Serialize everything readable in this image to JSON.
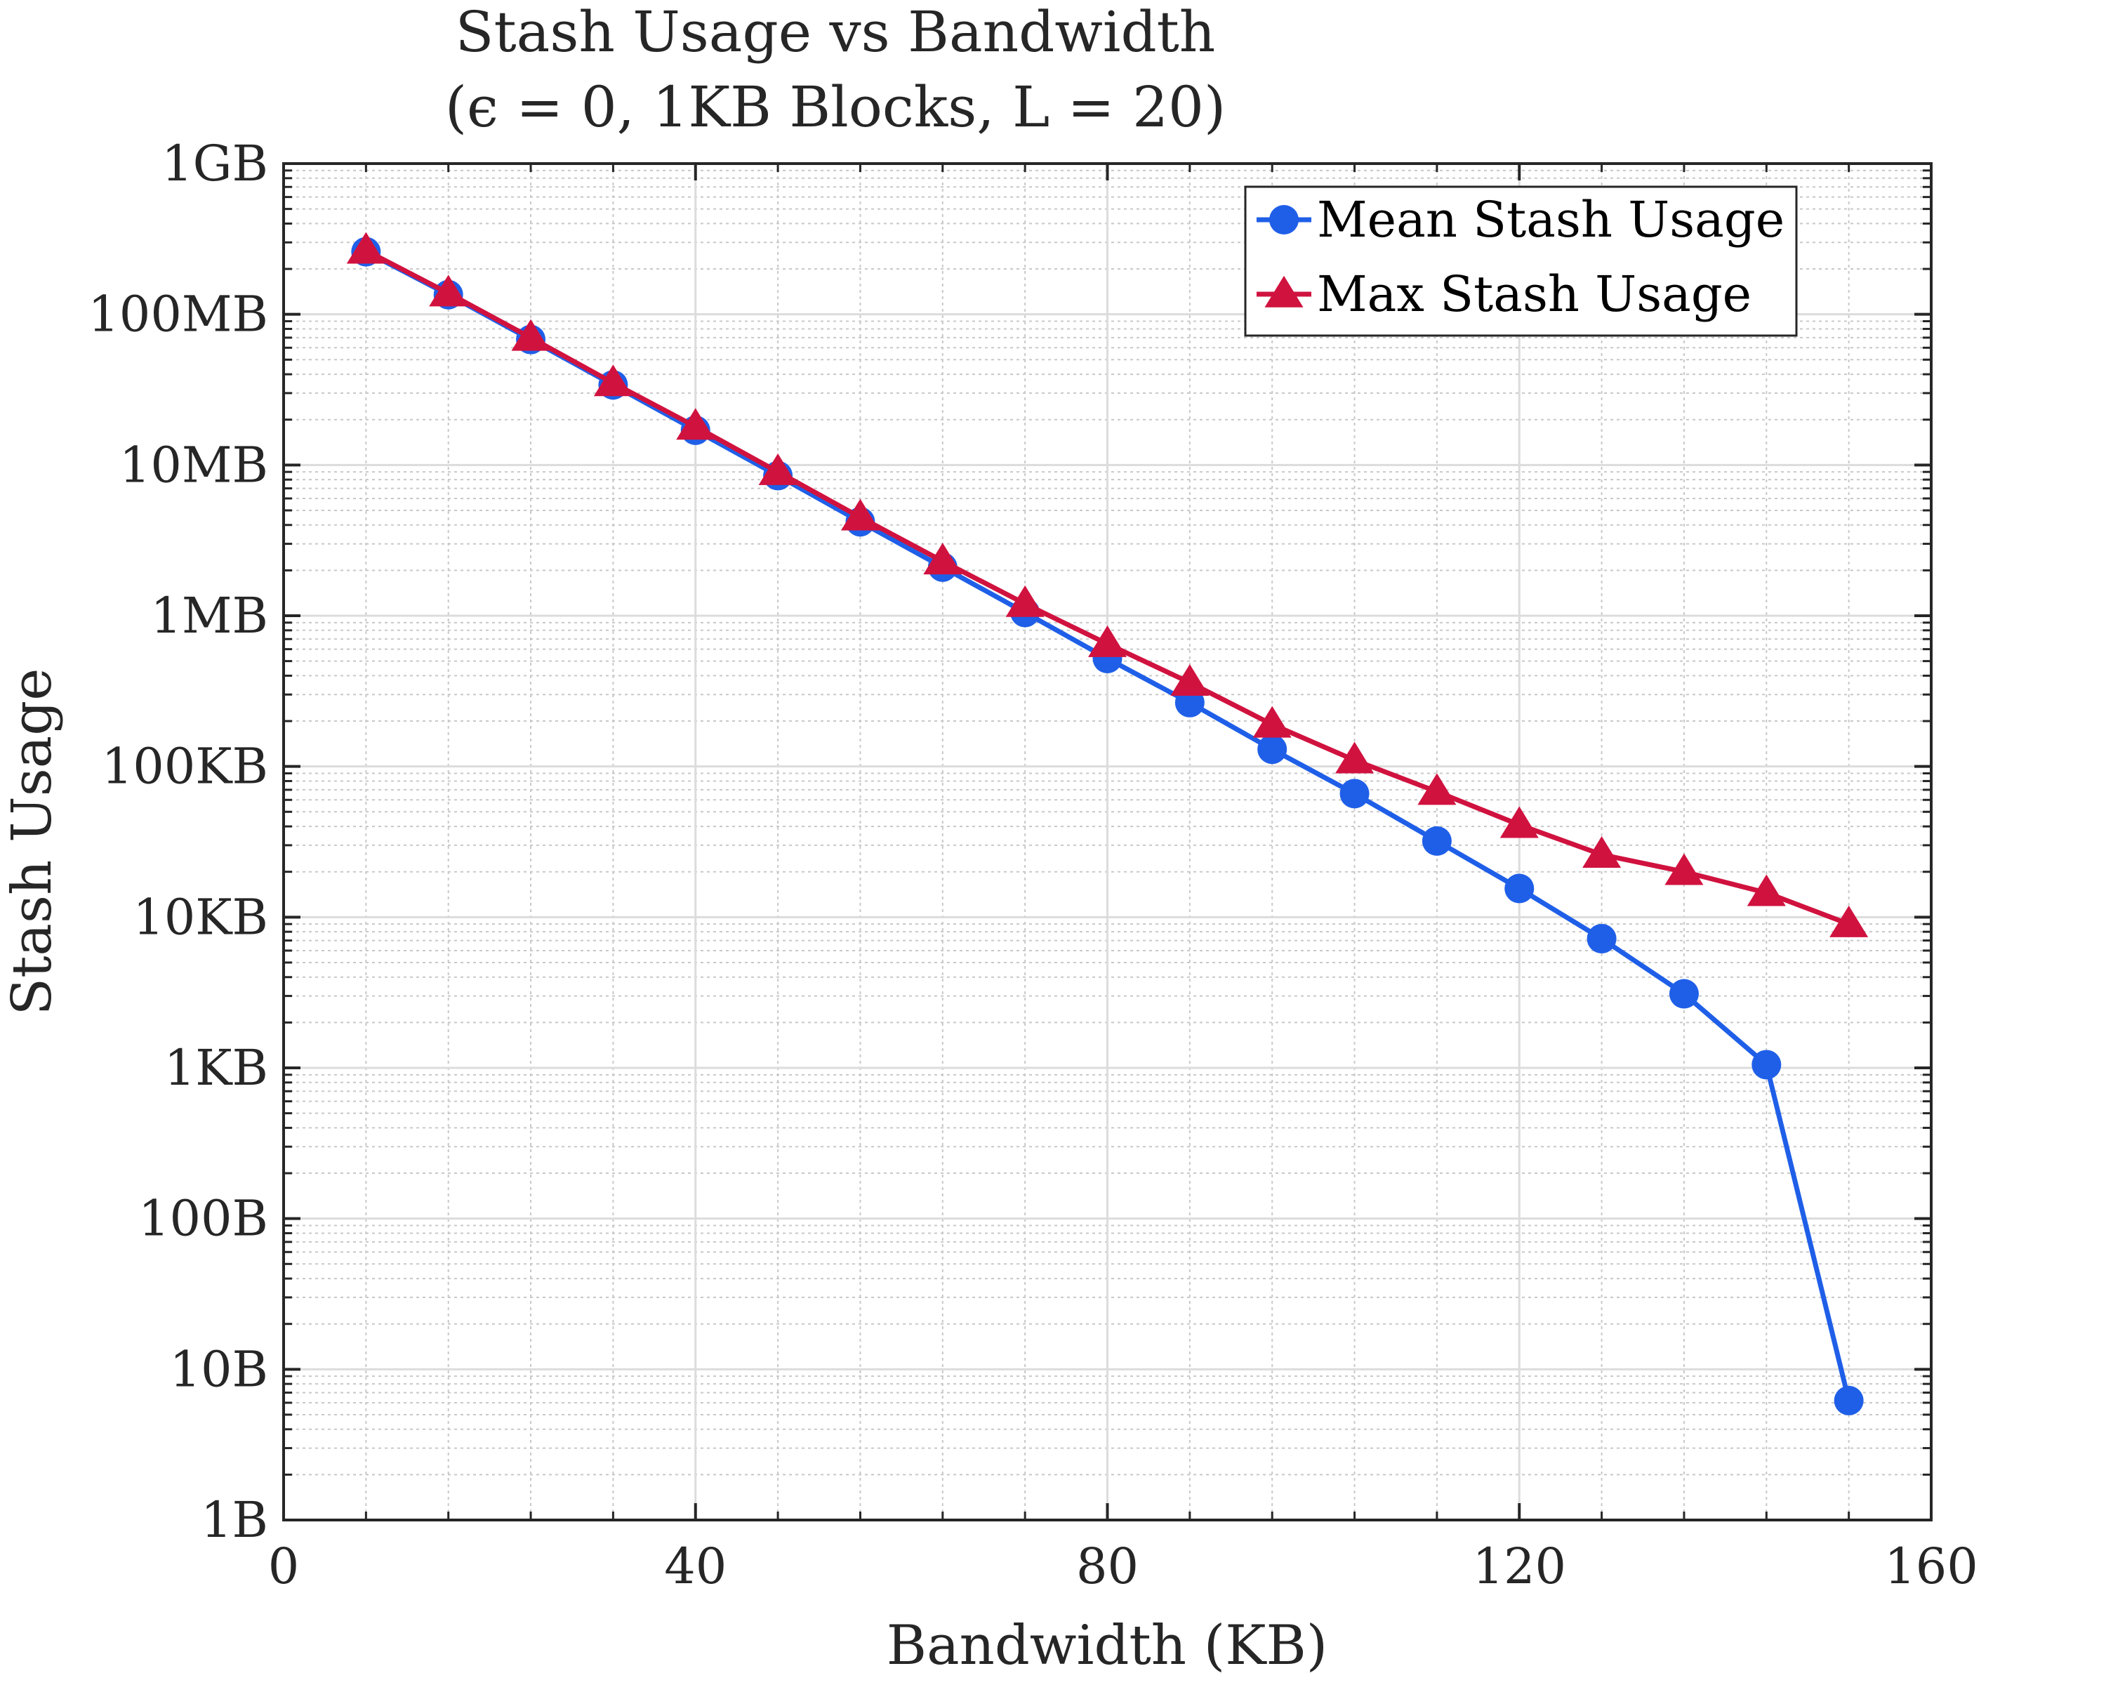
{
  "chart_data": {
    "type": "line",
    "title": "Stash Usage vs Bandwidth",
    "subtitle": "(ϵ = 0, 1KB Blocks, L = 20)",
    "xlabel": "Bandwidth (KB)",
    "ylabel": "Stash Usage",
    "xlim": [
      0,
      160
    ],
    "ylim": [
      1,
      1000000000
    ],
    "yscale": "log",
    "grid": true,
    "legend_position": "top-right",
    "x_ticks": [
      {
        "value": 0,
        "label": "0"
      },
      {
        "value": 40,
        "label": "40"
      },
      {
        "value": 80,
        "label": "80"
      },
      {
        "value": 120,
        "label": "120"
      },
      {
        "value": 160,
        "label": "160"
      }
    ],
    "y_ticks": [
      {
        "value": 1,
        "label": "1B"
      },
      {
        "value": 10,
        "label": "10B"
      },
      {
        "value": 100,
        "label": "100B"
      },
      {
        "value": 1000,
        "label": "1KB"
      },
      {
        "value": 10000,
        "label": "10KB"
      },
      {
        "value": 100000,
        "label": "100KB"
      },
      {
        "value": 1000000,
        "label": "1MB"
      },
      {
        "value": 10000000,
        "label": "10MB"
      },
      {
        "value": 100000000,
        "label": "100MB"
      },
      {
        "value": 1000000000,
        "label": "1GB"
      }
    ],
    "x": [
      8,
      16,
      24,
      32,
      40,
      48,
      56,
      64,
      72,
      80,
      88,
      96,
      104,
      112,
      120,
      128,
      136,
      144,
      152
    ],
    "series": [
      {
        "name": "Mean Stash Usage",
        "color": "#1f5fe8",
        "marker": "circle",
        "values": [
          260000000,
          135000000,
          68000000,
          34000000,
          17000000,
          8500000,
          4200000,
          2100000,
          1050000,
          520000,
          265000,
          130000,
          66000,
          32000,
          15500,
          7200,
          3100,
          1050,
          6.2
        ]
      },
      {
        "name": "Max Stash Usage",
        "color": "#d0123f",
        "marker": "triangle",
        "values": [
          265000000,
          138000000,
          70000000,
          35000000,
          18000000,
          9000000,
          4500000,
          2300000,
          1200000,
          650000,
          360000,
          190000,
          110000,
          68000,
          41000,
          26000,
          20000,
          14500,
          9000
        ]
      }
    ]
  }
}
